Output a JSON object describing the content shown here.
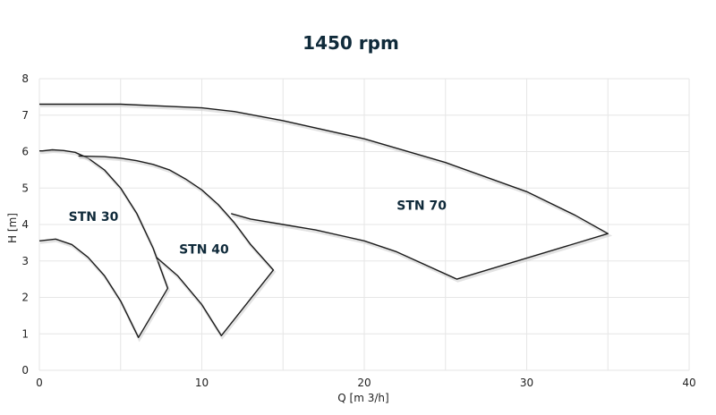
{
  "chart_data": {
    "type": "line",
    "title": "1450 rpm",
    "xlabel": "Q [m 3/h]",
    "ylabel": "H [m]",
    "xlim": [
      0,
      40
    ],
    "ylim": [
      0,
      8
    ],
    "xticks": [
      "0",
      "10",
      "20",
      "30",
      "40"
    ],
    "yticks": [
      "0",
      "1",
      "2",
      "3",
      "4",
      "5",
      "6",
      "7",
      "8"
    ],
    "grid": true,
    "series": [
      {
        "name": "STN 30",
        "label_at": [
          1.8,
          4.1
        ],
        "x": [
          0,
          1,
          2,
          3,
          4,
          5,
          6.1,
          7.9,
          7,
          6,
          5,
          4,
          3,
          2.2,
          1.5,
          0.8,
          0.2,
          0
        ],
        "y": [
          3.55,
          3.6,
          3.45,
          3.1,
          2.6,
          1.9,
          0.9,
          2.25,
          3.35,
          4.3,
          5.0,
          5.5,
          5.82,
          5.98,
          6.03,
          6.05,
          6.02,
          6.02
        ]
      },
      {
        "name": "STN 40",
        "label_at": [
          8.6,
          3.2
        ],
        "x": [
          7.2,
          8.5,
          10,
          11.2,
          14.4,
          13,
          12,
          11,
          10,
          9,
          8,
          7,
          6,
          5,
          4,
          2.4
        ],
        "y": [
          3.1,
          2.6,
          1.8,
          0.95,
          2.75,
          3.45,
          4.05,
          4.55,
          4.95,
          5.25,
          5.5,
          5.65,
          5.75,
          5.82,
          5.86,
          5.88
        ]
      },
      {
        "name": "STN 70",
        "label_at": [
          22,
          4.4
        ],
        "x": [
          0,
          5,
          10,
          12,
          15,
          20,
          25,
          30,
          33,
          35,
          25.7,
          22,
          20,
          17,
          15,
          13,
          11.8
        ],
        "y": [
          7.3,
          7.3,
          7.2,
          7.1,
          6.85,
          6.35,
          5.7,
          4.9,
          4.25,
          3.75,
          2.5,
          3.25,
          3.55,
          3.85,
          4.0,
          4.15,
          4.3
        ]
      }
    ]
  }
}
